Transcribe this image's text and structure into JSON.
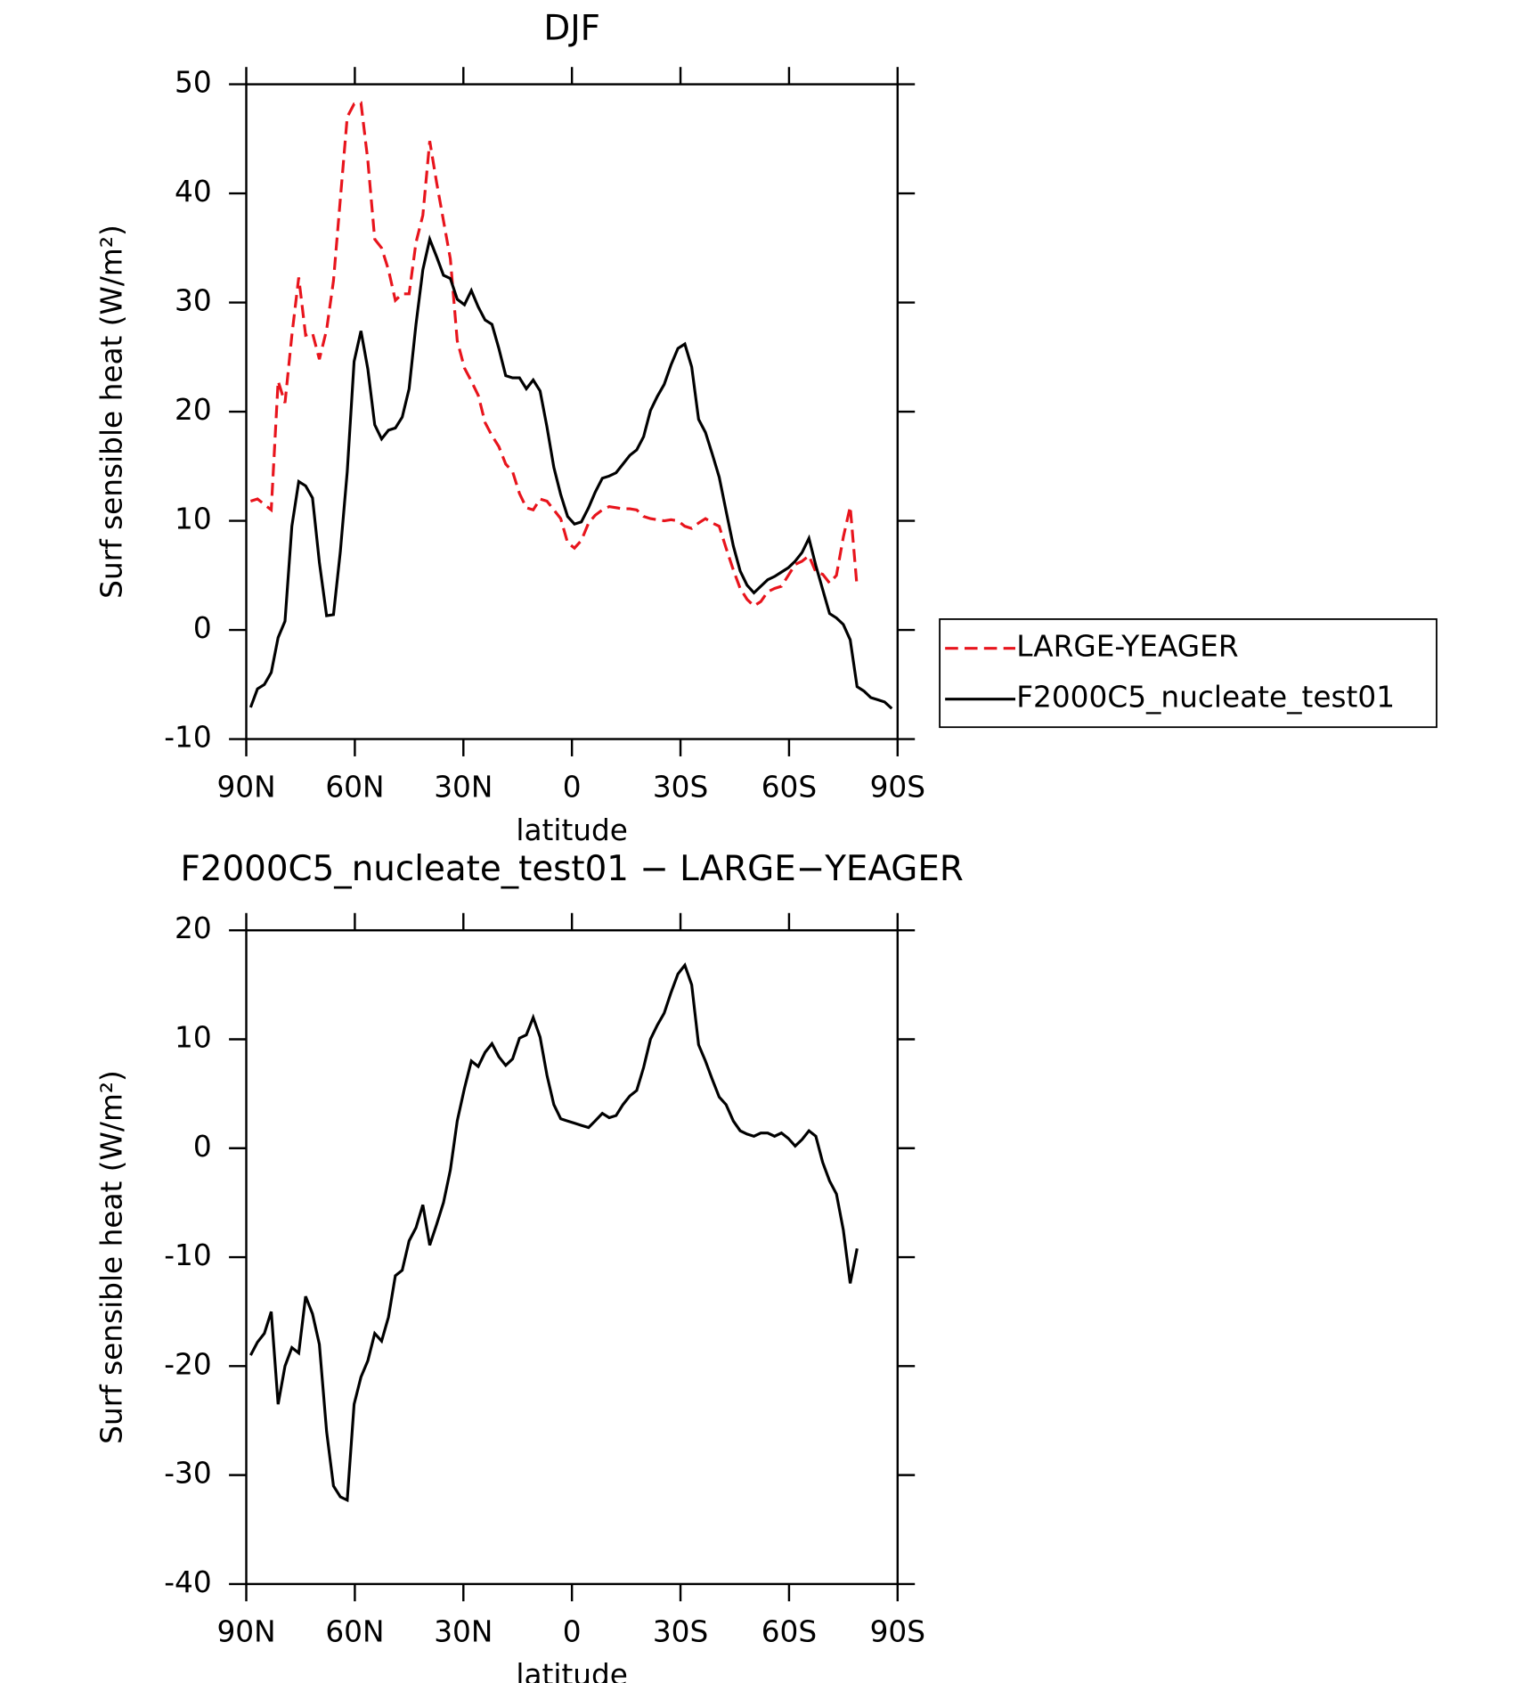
{
  "chart_data": [
    {
      "type": "line",
      "title": "DJF",
      "xlabel": "latitude",
      "ylabel": "Surf sensible heat (W/m²)",
      "x": [
        88.8,
        86.9,
        85.0,
        83.1,
        81.2,
        79.3,
        77.4,
        75.5,
        73.6,
        71.7,
        69.8,
        67.8,
        65.9,
        64.0,
        62.1,
        60.2,
        58.3,
        56.4,
        54.5,
        52.6,
        50.7,
        48.8,
        46.9,
        45.0,
        43.1,
        41.2,
        39.3,
        37.4,
        35.5,
        33.6,
        31.7,
        29.7,
        27.8,
        25.9,
        24.0,
        22.1,
        20.2,
        18.3,
        16.4,
        14.5,
        12.6,
        10.7,
        8.8,
        6.9,
        5.0,
        3.1,
        1.2,
        -0.7,
        -2.6,
        -4.6,
        -6.4,
        -8.4,
        -10.3,
        -12.2,
        -14.1,
        -16.0,
        -17.9,
        -19.8,
        -21.7,
        -23.6,
        -25.5,
        -27.4,
        -29.3,
        -31.2,
        -33.1,
        -35.0,
        -36.9,
        -38.8,
        -40.7,
        -42.6,
        -44.6,
        -46.5,
        -48.4,
        -50.3,
        -52.2,
        -54.1,
        -56.0,
        -57.9,
        -59.8,
        -61.7,
        -63.6,
        -65.5,
        -67.4,
        -69.3,
        -71.2,
        -73.1,
        -75.0,
        -76.9,
        -78.8,
        -80.7,
        -82.6,
        -84.5,
        -86.4,
        -88.4
      ],
      "series": [
        {
          "name": "LARGE-YEAGER",
          "color": "#e8141c",
          "linestyle": "dashed",
          "values": [
            11.8,
            12.0,
            11.5,
            11.0,
            22.8,
            20.8,
            27.0,
            32.3,
            27.0,
            27.2,
            24.8,
            27.5,
            32.0,
            39.5,
            47.0,
            48.2,
            48.3,
            43.0,
            35.8,
            35.0,
            33.0,
            30.2,
            30.8,
            30.8,
            35.5,
            38.0,
            44.8,
            41.0,
            37.5,
            34.0,
            26.5,
            24.0,
            22.8,
            21.5,
            19.0,
            17.8,
            16.8,
            15.2,
            14.5,
            12.5,
            11.2,
            11.0,
            12.0,
            11.8,
            11.0,
            10.2,
            8.0,
            7.5,
            8.2,
            9.8,
            10.5,
            11.0,
            11.3,
            11.2,
            11.1,
            11.1,
            11.0,
            10.4,
            10.2,
            10.1,
            10.0,
            10.1,
            10.0,
            9.5,
            9.3,
            9.8,
            10.2,
            9.8,
            9.5,
            7.5,
            5.5,
            3.8,
            2.8,
            2.2,
            2.6,
            3.5,
            3.8,
            4.0,
            5.0,
            6.0,
            6.3,
            6.8,
            5.3,
            5.1,
            4.3,
            5.0,
            8.5,
            11.3,
            3.9,
            null,
            null,
            null,
            null,
            null
          ]
        },
        {
          "name": "F2000C5_nucleate_test01",
          "color": "#000000",
          "linestyle": "solid",
          "values": [
            -7.1,
            -5.4,
            -5.0,
            -3.9,
            -0.7,
            0.8,
            9.5,
            13.6,
            13.2,
            12.1,
            6.2,
            1.3,
            1.4,
            7.2,
            14.5,
            24.6,
            27.4,
            23.9,
            18.8,
            17.5,
            18.3,
            18.5,
            19.5,
            22.1,
            28.0,
            33.0,
            35.8,
            34.2,
            32.5,
            32.2,
            30.3,
            29.8,
            31.1,
            29.6,
            28.4,
            28.0,
            25.8,
            23.3,
            23.1,
            23.1,
            22.1,
            22.9,
            21.9,
            18.6,
            14.9,
            12.4,
            10.4,
            9.7,
            9.9,
            11.2,
            12.6,
            13.9,
            14.1,
            14.4,
            15.2,
            16.0,
            16.5,
            17.7,
            20.1,
            21.4,
            22.5,
            24.3,
            25.8,
            26.2,
            24.1,
            19.3,
            18.1,
            16.1,
            14.0,
            10.9,
            7.7,
            5.4,
            4.1,
            3.4,
            4.0,
            4.6,
            4.9,
            5.3,
            5.7,
            6.3,
            7.1,
            8.4,
            5.9,
            3.7,
            1.5,
            1.1,
            0.5,
            -0.9,
            -5.2,
            -5.6,
            -6.2,
            -6.4,
            -6.6,
            -7.2
          ]
        }
      ],
      "xlim": [
        90,
        -90
      ],
      "xticks": [
        {
          "value": 90,
          "label": "90N"
        },
        {
          "value": 60,
          "label": "60N"
        },
        {
          "value": 30,
          "label": "30N"
        },
        0,
        {
          "value": -30,
          "label": "30S"
        },
        {
          "value": -60,
          "label": "60S"
        },
        {
          "value": -90,
          "label": "90S"
        }
      ],
      "ylim": [
        -10,
        50
      ],
      "yticks": [
        -10,
        0,
        10,
        20,
        30,
        40,
        50
      ],
      "legend": "right"
    },
    {
      "type": "line",
      "title": "F2000C5_nucleate_test01 − LARGE−YEAGER",
      "xlabel": "latitude",
      "ylabel": "Surf sensible heat (W/m²)",
      "x": [
        88.8,
        86.9,
        85.0,
        83.1,
        81.2,
        79.3,
        77.4,
        75.5,
        73.6,
        71.7,
        69.8,
        67.8,
        65.9,
        64.0,
        62.1,
        60.2,
        58.3,
        56.4,
        54.5,
        52.6,
        50.7,
        48.8,
        46.9,
        45.0,
        43.1,
        41.2,
        39.3,
        37.4,
        35.5,
        33.6,
        31.7,
        29.7,
        27.8,
        25.9,
        24.0,
        22.1,
        20.2,
        18.3,
        16.4,
        14.5,
        12.6,
        10.7,
        8.8,
        6.9,
        5.0,
        3.1,
        1.2,
        -0.7,
        -2.6,
        -4.6,
        -6.4,
        -8.4,
        -10.3,
        -12.2,
        -14.1,
        -16.0,
        -17.9,
        -19.8,
        -21.7,
        -23.6,
        -25.5,
        -27.4,
        -29.3,
        -31.2,
        -33.1,
        -35.0,
        -36.9,
        -38.8,
        -40.7,
        -42.6,
        -44.6,
        -46.5,
        -48.4,
        -50.3,
        -52.2,
        -54.1,
        -56.0,
        -57.9,
        -59.8,
        -61.7,
        -63.6,
        -65.5,
        -67.4,
        -69.3,
        -71.2,
        -73.1,
        -75.0,
        -76.9,
        -78.8,
        -80.7,
        -82.6,
        -84.5,
        -86.4,
        -88.4
      ],
      "series": [
        {
          "color": "#000000",
          "linestyle": "solid",
          "values": [
            -19.0,
            -17.8,
            -17.0,
            -15.0,
            -23.5,
            -20.0,
            -18.3,
            -18.8,
            -13.6,
            -15.2,
            -18.0,
            -26.0,
            -31.0,
            -32.0,
            -32.3,
            -23.5,
            -21.0,
            -19.5,
            -17.0,
            -17.7,
            -15.5,
            -11.7,
            -11.2,
            -8.5,
            -7.3,
            -5.2,
            -8.9,
            -7.0,
            -5.0,
            -2.0,
            2.5,
            5.5,
            8.0,
            7.5,
            8.8,
            9.6,
            8.4,
            7.6,
            8.2,
            10.1,
            10.4,
            12.0,
            10.2,
            6.7,
            4.0,
            2.7,
            2.5,
            2.3,
            2.1,
            1.9,
            2.5,
            3.2,
            2.8,
            3.0,
            4.0,
            4.8,
            5.3,
            7.4,
            10.0,
            11.3,
            12.4,
            14.3,
            16.0,
            16.8,
            15.0,
            9.5,
            8.0,
            6.3,
            4.7,
            4.0,
            2.5,
            1.6,
            1.3,
            1.1,
            1.4,
            1.4,
            1.1,
            1.4,
            0.9,
            0.2,
            0.8,
            1.6,
            1.1,
            -1.3,
            -3.0,
            -4.2,
            -7.5,
            -12.4,
            -9.2,
            null,
            null,
            null,
            null,
            null
          ]
        }
      ],
      "xlim": [
        90,
        -90
      ],
      "xticks": [
        {
          "value": 90,
          "label": "90N"
        },
        {
          "value": 60,
          "label": "60N"
        },
        {
          "value": 30,
          "label": "30N"
        },
        0,
        {
          "value": -30,
          "label": "30S"
        },
        {
          "value": -60,
          "label": "60S"
        },
        {
          "value": -90,
          "label": "90S"
        }
      ],
      "ylim": [
        -40,
        20
      ],
      "yticks": [
        -40,
        -30,
        -20,
        -10,
        0,
        10,
        20
      ]
    }
  ]
}
